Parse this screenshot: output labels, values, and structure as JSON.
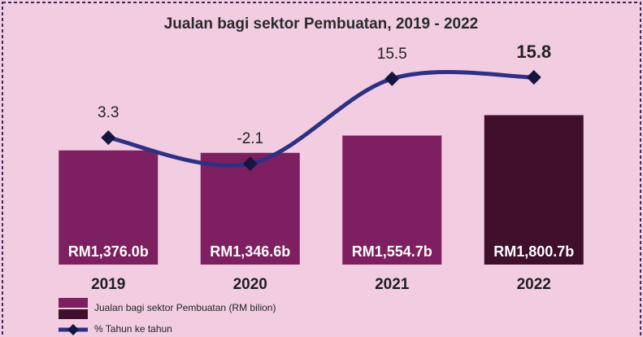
{
  "chart_data": {
    "type": "bar",
    "title": "Jualan bagi sektor Pembuatan, 2019 - 2022",
    "categories": [
      "2019",
      "2020",
      "2021",
      "2022"
    ],
    "ylim": [
      0,
      2600
    ],
    "y2lim": [
      -23,
      21.7
    ],
    "legend": "bottom-left",
    "series": [
      {
        "name": "Jualan bagi sektor Pembuatan (RM bilion)",
        "type": "bar",
        "colors": [
          "#7d1f60",
          "#7d1f60",
          "#7d1f60",
          "#3f0f2c"
        ],
        "values": [
          1376.0,
          1346.6,
          1554.7,
          1800.7
        ],
        "value_labels": [
          "RM1,376.0b",
          "RM1,346.6b",
          "RM1,554.7b",
          "RM1,800.7b"
        ]
      },
      {
        "name": "% Tahun ke tahun",
        "type": "line",
        "axis": "y2",
        "color": "#2e3082",
        "marker_color": "#15163f",
        "values": [
          3.3,
          -2.1,
          15.5,
          15.8
        ]
      }
    ]
  }
}
